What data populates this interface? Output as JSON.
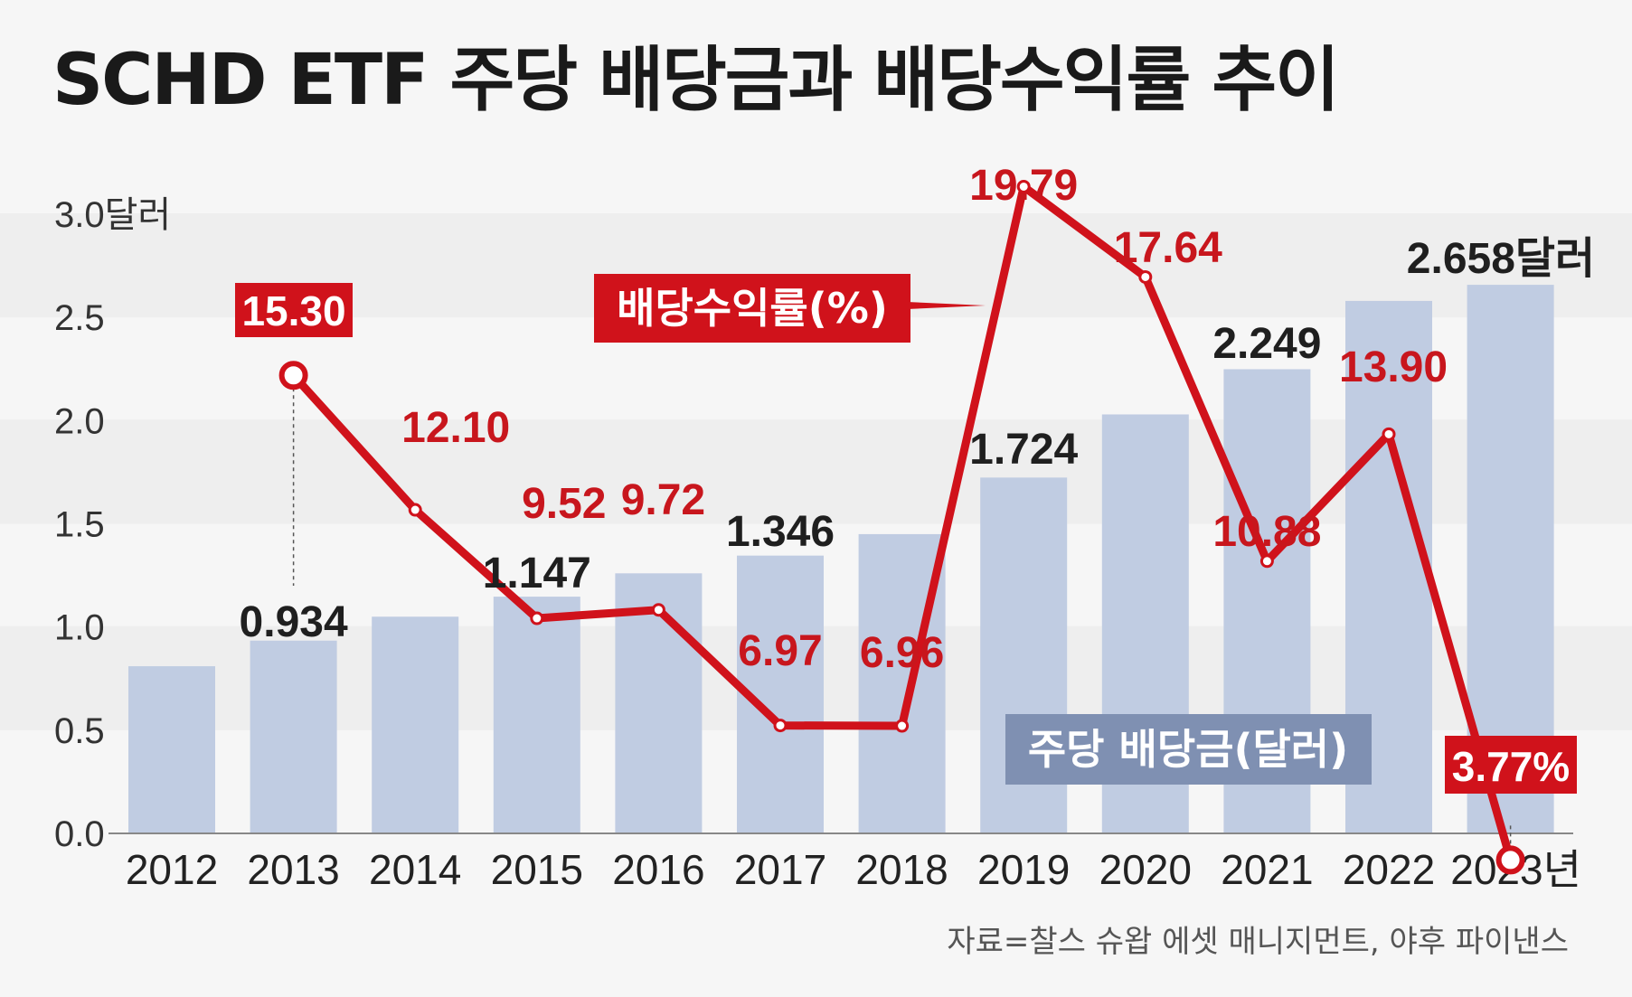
{
  "chart_data": {
    "type": "bar+line",
    "title": "SCHD ETF 주당 배당금과 배당수익률 추이",
    "categories": [
      "2012",
      "2013",
      "2014",
      "2015",
      "2016",
      "2017",
      "2018",
      "2019",
      "2020",
      "2021",
      "2022",
      "2023"
    ],
    "x_tick_labels": [
      "2012",
      "2013",
      "2014",
      "2015",
      "2016",
      "2017",
      "2018",
      "2019",
      "2020",
      "2021",
      "2022",
      "2023년"
    ],
    "y_tick_labels": [
      "0.0",
      "0.5",
      "1.0",
      "1.5",
      "2.0",
      "2.5",
      "3.0달러"
    ],
    "ylim": [
      0,
      3.0
    ],
    "series": [
      {
        "name": "주당 배당금(달러)",
        "type": "bar",
        "color": "#c0cce2",
        "values": [
          0.81,
          0.934,
          1.05,
          1.147,
          1.26,
          1.346,
          1.45,
          1.724,
          2.03,
          2.249,
          2.58,
          2.658
        ],
        "labels": [
          "",
          "0.934",
          "",
          "1.147",
          "",
          "1.346",
          "",
          "1.724",
          "",
          "2.249",
          "",
          "2.658달러"
        ]
      },
      {
        "name": "배당수익률(%)",
        "type": "line",
        "color": "#d0121b",
        "values": [
          null,
          15.3,
          12.1,
          9.52,
          9.72,
          6.97,
          6.96,
          19.79,
          17.64,
          10.88,
          13.9,
          3.77
        ],
        "labels": [
          "",
          "15.30",
          "12.10",
          "9.52",
          "9.72",
          "6.97",
          "6.96",
          "19.79",
          "17.64",
          "10.88",
          "13.90",
          "3.77%"
        ]
      }
    ],
    "legend_bar": "주당 배당금(달러)",
    "legend_line": "배당수익률(%)",
    "source": "자료=찰스 슈왑 에셋 매니지먼트, 야후 파이낸스",
    "colors": {
      "accent": "#d0121b",
      "bar": "#c0cce2",
      "legend_bar_bg": "#7f90b2",
      "band": "#eeeeee",
      "bg": "#f6f6f6"
    }
  }
}
